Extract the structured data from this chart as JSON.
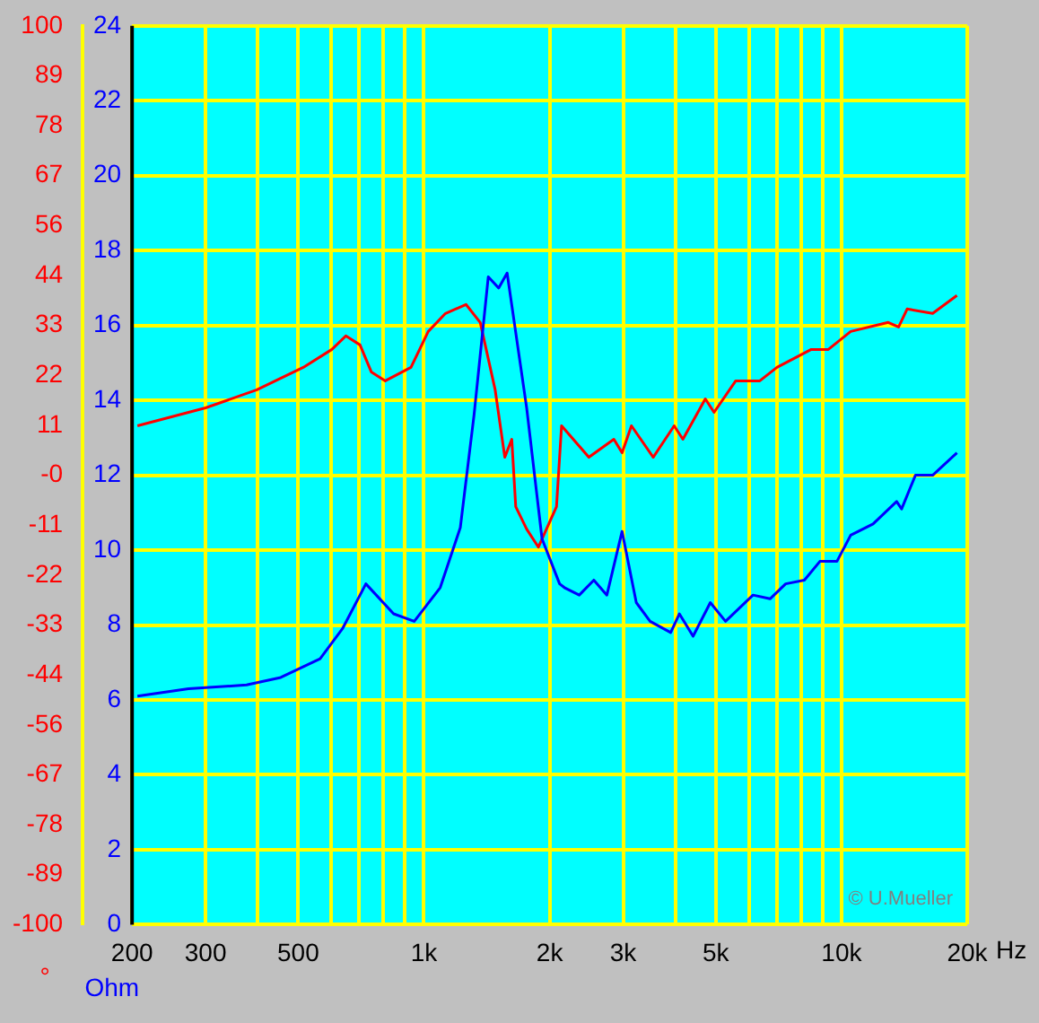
{
  "chart_data": {
    "type": "line",
    "ylabel": "Ohm",
    "y2label": "°",
    "annotations": [
      "© U.Mueller"
    ],
    "log": "x",
    "grid": true,
    "legend": false,
    "marker": "none",
    "line_style": "solid",
    "xlim": [
      200,
      20000
    ],
    "xticks": [
      {
        "value": 200,
        "label": "200"
      },
      {
        "value": 300,
        "label": "300"
      },
      {
        "value": 400,
        "label": null
      },
      {
        "value": 500,
        "label": "500"
      },
      {
        "value": 600,
        "label": null
      },
      {
        "value": 700,
        "label": null
      },
      {
        "value": 800,
        "label": null
      },
      {
        "value": 900,
        "label": null
      },
      {
        "value": 1000,
        "label": "1k"
      },
      {
        "value": 2000,
        "label": "2k"
      },
      {
        "value": 3000,
        "label": "3k"
      },
      {
        "value": 4000,
        "label": null
      },
      {
        "value": 5000,
        "label": "5k"
      },
      {
        "value": 6000,
        "label": null
      },
      {
        "value": 7000,
        "label": null
      },
      {
        "value": 8000,
        "label": null
      },
      {
        "value": 9000,
        "label": null
      },
      {
        "value": 10000,
        "label": "10k"
      },
      {
        "value": 20000,
        "label": "20k"
      }
    ],
    "xlabel": "Hz",
    "ylim": [
      0,
      24
    ],
    "yticks": [
      0,
      2,
      4,
      6,
      8,
      10,
      12,
      14,
      16,
      18,
      20,
      22,
      24
    ],
    "y2lim": [
      -100,
      100
    ],
    "y2ticks": [
      {
        "value": -100,
        "label": "-100"
      },
      {
        "value": -88.89,
        "label": "-89"
      },
      {
        "value": -77.78,
        "label": "-78"
      },
      {
        "value": -66.67,
        "label": "-67"
      },
      {
        "value": -55.56,
        "label": "-56"
      },
      {
        "value": -44.44,
        "label": "-44"
      },
      {
        "value": -33.33,
        "label": "-33"
      },
      {
        "value": -22.22,
        "label": "-22"
      },
      {
        "value": -11.11,
        "label": "-11"
      },
      {
        "value": 0,
        "label": "-0"
      },
      {
        "value": 11.11,
        "label": "11"
      },
      {
        "value": 22.22,
        "label": "22"
      },
      {
        "value": 33.33,
        "label": "33"
      },
      {
        "value": 44.44,
        "label": "44"
      },
      {
        "value": 55.56,
        "label": "56"
      },
      {
        "value": 66.67,
        "label": "67"
      },
      {
        "value": 77.78,
        "label": "78"
      },
      {
        "value": 88.89,
        "label": "89"
      },
      {
        "value": 100,
        "label": "100"
      }
    ],
    "series": [
      {
        "color": "#0000ff",
        "axis": "y",
        "x": [
          206,
          273,
          376,
          454,
          564,
          638,
          726,
          846,
          948,
          1094,
          1222,
          1318,
          1426,
          1510,
          1582,
          1762,
          1918,
          2113,
          2170,
          2355,
          2552,
          2742,
          2982,
          3225,
          3480,
          3899,
          4089,
          4411,
          4851,
          5275,
          6138,
          6744,
          7348,
          8149,
          8875,
          9749,
          10520,
          11900,
          13550,
          13930,
          15030,
          16530,
          18900
        ],
        "values": [
          6.1,
          6.3,
          6.4,
          6.6,
          7.1,
          7.9,
          9.1,
          8.3,
          8.1,
          9.0,
          10.6,
          13.6,
          17.3,
          17.0,
          17.4,
          13.8,
          10.3,
          9.1,
          9.0,
          8.8,
          9.2,
          8.8,
          10.5,
          8.6,
          8.1,
          7.8,
          8.3,
          7.7,
          8.6,
          8.1,
          8.8,
          8.7,
          9.1,
          9.2,
          9.7,
          9.7,
          10.4,
          10.7,
          11.3,
          11.1,
          12.0,
          12.0,
          12.6
        ]
      },
      {
        "color": "#ff0000",
        "axis": "y2",
        "x": [
          206,
          300,
          398,
          514,
          602,
          650,
          703,
          748,
          808,
          931,
          1024,
          1126,
          1261,
          1364,
          1481,
          1562,
          1623,
          1659,
          1762,
          1880,
          2077,
          2136,
          2483,
          2850,
          2982,
          3140,
          3541,
          3974,
          4170,
          4719,
          4952,
          5580,
          6373,
          7005,
          8463,
          9300,
          10520,
          12940,
          13700,
          14360,
          16530,
          18900
        ],
        "values": [
          11,
          15,
          19,
          24,
          28,
          31,
          29,
          23,
          21,
          24,
          32,
          36,
          38,
          34,
          19,
          4,
          8,
          -7,
          -12,
          -16,
          -7,
          11,
          4,
          8,
          5,
          11,
          4,
          11,
          8,
          17,
          14,
          21,
          21,
          24,
          28,
          28,
          32,
          34,
          33,
          37,
          36,
          40
        ]
      }
    ]
  }
}
